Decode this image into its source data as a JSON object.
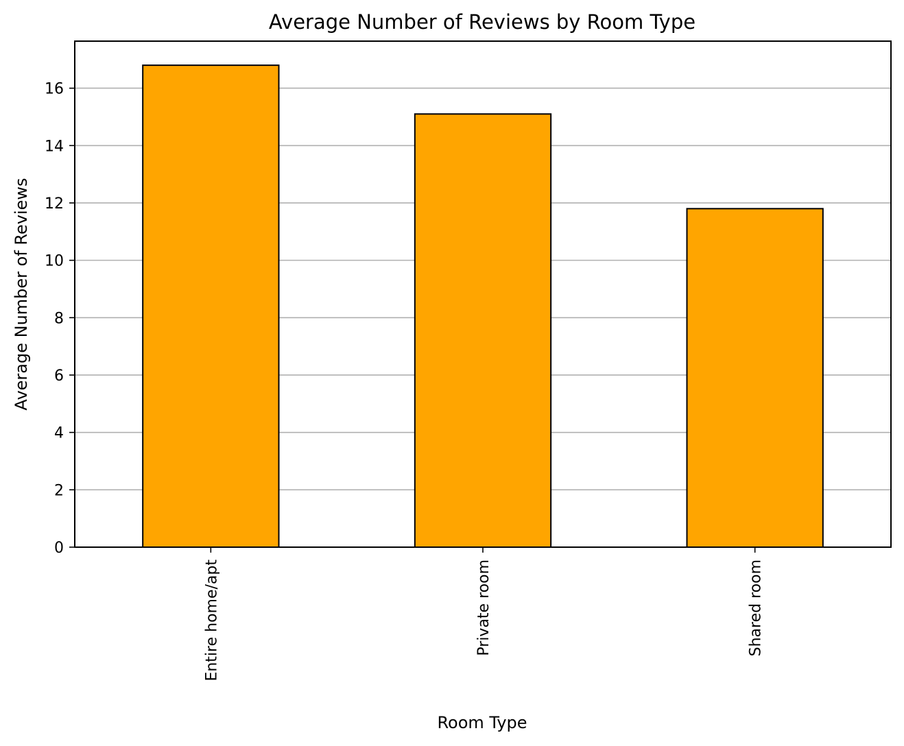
{
  "chart_data": {
    "type": "bar",
    "title": "Average Number of Reviews by Room Type",
    "xlabel": "Room Type",
    "ylabel": "Average Number of Reviews",
    "categories": [
      "Entire home/apt",
      "Private room",
      "Shared room"
    ],
    "values": [
      16.8,
      15.1,
      11.8
    ],
    "ylim": [
      0,
      17.64
    ],
    "yticks": [
      0,
      2,
      4,
      6,
      8,
      10,
      12,
      14,
      16
    ],
    "ytick_labels": [
      "0",
      "2",
      "4",
      "6",
      "8",
      "10",
      "12",
      "14",
      "16"
    ],
    "xtick_rotation": "vertical",
    "grid": "y-axis",
    "legend": "none",
    "colors": {
      "bar_fill": "#FFA500",
      "bar_edge": "#000000",
      "grid": "#B0B0B0",
      "axis": "#000000",
      "background": "#FFFFFF"
    }
  }
}
